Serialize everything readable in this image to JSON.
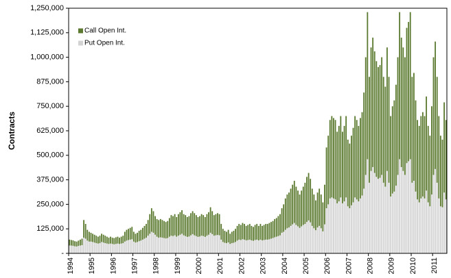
{
  "chart_data": {
    "type": "stacked_bar",
    "y_label": "Contracts",
    "legend_position": "upper left",
    "ylim": [
      0,
      1250000
    ],
    "yticks": [
      {
        "value": 0,
        "label": "-"
      },
      {
        "value": 125000,
        "label": "125,000"
      },
      {
        "value": 250000,
        "label": "250,000"
      },
      {
        "value": 375000,
        "label": "375,000"
      },
      {
        "value": 500000,
        "label": "500,000"
      },
      {
        "value": 625000,
        "label": "625,000"
      },
      {
        "value": 750000,
        "label": "750,000"
      },
      {
        "value": 875000,
        "label": "875,000"
      },
      {
        "value": 1000000,
        "label": "1,000,000"
      },
      {
        "value": 1125000,
        "label": "1,125,000"
      },
      {
        "value": 1250000,
        "label": "1,250,000"
      }
    ],
    "categories": [
      "1994",
      null,
      null,
      null,
      null,
      null,
      null,
      null,
      null,
      null,
      null,
      null,
      "1995",
      null,
      null,
      null,
      null,
      null,
      null,
      null,
      null,
      null,
      null,
      null,
      "1996",
      null,
      null,
      null,
      null,
      null,
      null,
      null,
      null,
      null,
      null,
      null,
      "1997",
      null,
      null,
      null,
      null,
      null,
      null,
      null,
      null,
      null,
      null,
      null,
      "1998",
      null,
      null,
      null,
      null,
      null,
      null,
      null,
      null,
      null,
      null,
      null,
      "1999",
      null,
      null,
      null,
      null,
      null,
      null,
      null,
      null,
      null,
      null,
      null,
      "2000",
      null,
      null,
      null,
      null,
      null,
      null,
      null,
      null,
      null,
      null,
      null,
      "2001",
      null,
      null,
      null,
      null,
      null,
      null,
      null,
      null,
      null,
      null,
      null,
      "2002",
      null,
      null,
      null,
      null,
      null,
      null,
      null,
      null,
      null,
      null,
      null,
      "2003",
      null,
      null,
      null,
      null,
      null,
      null,
      null,
      null,
      null,
      null,
      null,
      "2004",
      null,
      null,
      null,
      null,
      null,
      null,
      null,
      null,
      null,
      null,
      null,
      "2005",
      null,
      null,
      null,
      null,
      null,
      null,
      null,
      null,
      null,
      null,
      null,
      "2006",
      null,
      null,
      null,
      null,
      null,
      null,
      null,
      null,
      null,
      null,
      null,
      "2007",
      null,
      null,
      null,
      null,
      null,
      null,
      null,
      null,
      null,
      null,
      null,
      "2008",
      null,
      null,
      null,
      null,
      null,
      null,
      null,
      null,
      null,
      null,
      null,
      "2009",
      null,
      null,
      null,
      null,
      null,
      null,
      null,
      null,
      null,
      null,
      null,
      "2010",
      null,
      null,
      null,
      null,
      null,
      null,
      null,
      null,
      null,
      null,
      null,
      "2011",
      null,
      null,
      null,
      null,
      null,
      null,
      null
    ],
    "series": [
      {
        "name": "Call Open Int.",
        "color": "#5b7a2f",
        "values": [
          30000,
          28000,
          28000,
          26000,
          25000,
          27000,
          30000,
          33000,
          90000,
          75000,
          55000,
          50000,
          45000,
          42000,
          40000,
          38000,
          35000,
          38000,
          42000,
          40000,
          38000,
          35000,
          32000,
          35000,
          32000,
          32000,
          34000,
          35000,
          32000,
          35000,
          38000,
          50000,
          55000,
          57000,
          60000,
          63000,
          50000,
          45000,
          47000,
          53000,
          55000,
          60000,
          65000,
          70000,
          80000,
          100000,
          120000,
          110000,
          95000,
          90000,
          90000,
          93000,
          90000,
          87000,
          84000,
          87000,
          95000,
          105000,
          102000,
          108000,
          100000,
          110000,
          115000,
          120000,
          108000,
          107000,
          101000,
          104000,
          113000,
          117000,
          113000,
          107000,
          101000,
          104000,
          110000,
          107000,
          101000,
          110000,
          115000,
          130000,
          117000,
          105000,
          108000,
          111000,
          108000,
          80000,
          67000,
          61000,
          58000,
          64000,
          52000,
          58000,
          61000,
          67000,
          75000,
          80000,
          77000,
          83000,
          80000,
          74000,
          77000,
          80000,
          74000,
          71000,
          77000,
          80000,
          74000,
          80000,
          74000,
          77000,
          80000,
          80000,
          83000,
          85000,
          87000,
          93000,
          95000,
          102000,
          108000,
          125000,
          140000,
          160000,
          172000,
          178000,
          190000,
          202000,
          215000,
          195000,
          182000,
          170000,
          182000,
          195000,
          210000,
          230000,
          242000,
          222000,
          190000,
          172000,
          152000,
          178000,
          190000,
          172000,
          148000,
          202000,
          310000,
          350000,
          400000,
          415000,
          410000,
          405000,
          365000,
          385000,
          415000,
          365000,
          385000,
          415000,
          340000,
          330000,
          355000,
          380000,
          415000,
          405000,
          385000,
          410000,
          425000,
          490000,
          600000,
          750000,
          540000,
          630000,
          660000,
          620000,
          590000,
          570000,
          575000,
          600000,
          540000,
          510000,
          630000,
          540000,
          410000,
          445000,
          465000,
          515000,
          600000,
          750000,
          660000,
          630000,
          600000,
          690000,
          710000,
          750000,
          540000,
          550000,
          465000,
          405000,
          390000,
          420000,
          430000,
          420000,
          480000,
          390000,
          360000,
          450000,
          600000,
          650000,
          540000,
          420000,
          360000,
          345000,
          460000,
          405000
        ]
      },
      {
        "name": "Put Open Int.",
        "color": "#d3d3d3",
        "values": [
          40000,
          40000,
          38000,
          36000,
          35000,
          38000,
          40000,
          42000,
          80000,
          75000,
          65000,
          60000,
          60000,
          58000,
          55000,
          52000,
          50000,
          52000,
          58000,
          55000,
          52000,
          50000,
          48000,
          50000,
          48000,
          46000,
          48000,
          50000,
          48000,
          50000,
          52000,
          60000,
          65000,
          68000,
          70000,
          72000,
          60000,
          55000,
          58000,
          62000,
          65000,
          70000,
          75000,
          80000,
          90000,
          100000,
          110000,
          105000,
          95000,
          85000,
          80000,
          82000,
          80000,
          78000,
          76000,
          78000,
          85000,
          90000,
          88000,
          92000,
          85000,
          90000,
          95000,
          100000,
          92000,
          88000,
          84000,
          86000,
          92000,
          98000,
          92000,
          88000,
          84000,
          86000,
          90000,
          88000,
          84000,
          90000,
          95000,
          105000,
          98000,
          90000,
          92000,
          94000,
          92000,
          70000,
          58000,
          54000,
          52000,
          56000,
          48000,
          52000,
          54000,
          58000,
          65000,
          70000,
          68000,
          72000,
          70000,
          66000,
          68000,
          70000,
          66000,
          64000,
          68000,
          70000,
          66000,
          70000,
          66000,
          68000,
          70000,
          70000,
          72000,
          75000,
          78000,
          82000,
          85000,
          88000,
          92000,
          105000,
          110000,
          120000,
          128000,
          132000,
          140000,
          148000,
          155000,
          145000,
          138000,
          130000,
          138000,
          145000,
          150000,
          160000,
          168000,
          158000,
          140000,
          128000,
          118000,
          132000,
          140000,
          128000,
          112000,
          148000,
          230000,
          250000,
          280000,
          285000,
          280000,
          275000,
          255000,
          265000,
          285000,
          255000,
          265000,
          285000,
          240000,
          230000,
          245000,
          260000,
          285000,
          275000,
          265000,
          280000,
          295000,
          330000,
          400000,
          480000,
          360000,
          420000,
          440000,
          410000,
          390000,
          380000,
          385000,
          400000,
          360000,
          340000,
          420000,
          360000,
          290000,
          305000,
          315000,
          345000,
          400000,
          480000,
          440000,
          420000,
          400000,
          460000,
          470000,
          480000,
          360000,
          370000,
          315000,
          275000,
          260000,
          280000,
          290000,
          280000,
          320000,
          260000,
          240000,
          300000,
          400000,
          430000,
          360000,
          280000,
          240000,
          235000,
          310000,
          275000
        ]
      }
    ]
  }
}
